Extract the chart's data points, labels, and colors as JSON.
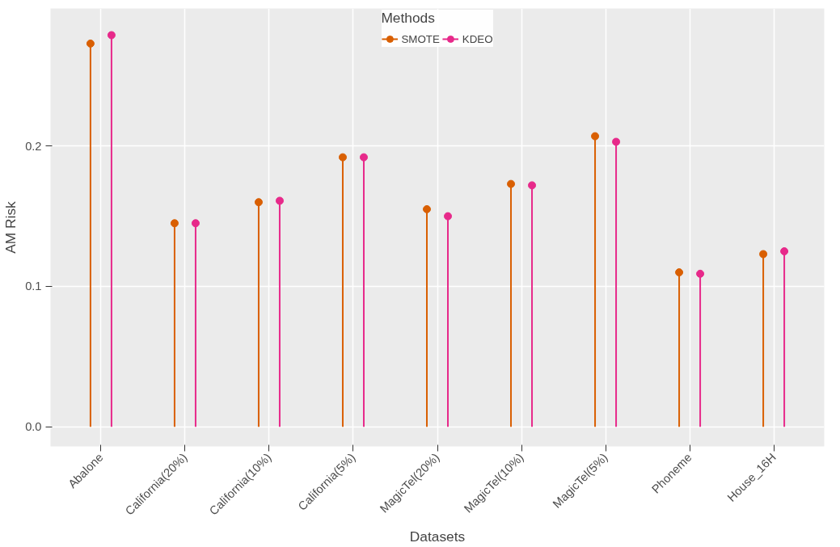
{
  "chart_data": {
    "type": "lollipop",
    "xlabel": "Datasets",
    "ylabel": "AM Risk",
    "legend_title": "Methods",
    "categories": [
      "Abalone",
      "California(20%)",
      "California(10%)",
      "California(5%)",
      "MagicTel(20%)",
      "MagicTel(10%)",
      "MagicTel(5%)",
      "Phoneme",
      "House_16H"
    ],
    "series": [
      {
        "name": "SMOTE",
        "color": "#d95f02",
        "values": [
          0.273,
          0.145,
          0.16,
          0.192,
          0.155,
          0.173,
          0.207,
          0.11,
          0.123
        ]
      },
      {
        "name": "KDEO",
        "color": "#e7298a",
        "values": [
          0.279,
          0.145,
          0.161,
          0.192,
          0.15,
          0.172,
          0.203,
          0.109,
          0.125
        ]
      }
    ],
    "ylim": [
      -0.014,
      0.298
    ],
    "yticks": [
      {
        "value": 0,
        "label": "0.0"
      },
      0.1,
      0.2
    ],
    "grid": true,
    "legend": "top",
    "marker": "circle"
  }
}
